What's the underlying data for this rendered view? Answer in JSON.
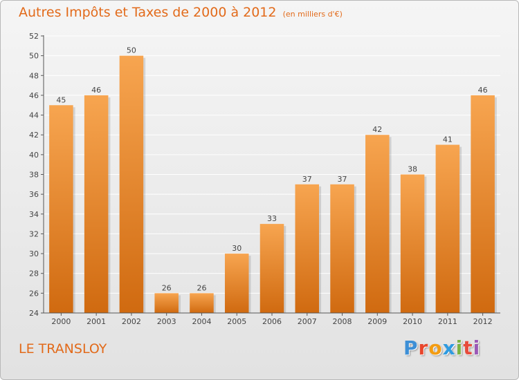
{
  "title": "Autres Impôts et Taxes de 2000 à 2012",
  "subtitle": "(en milliers d'€)",
  "commune": "LE TRANSLOY",
  "logo": {
    "letters": [
      "P",
      "r",
      "o",
      "x",
      "i",
      "t",
      "i"
    ],
    "colors": [
      "#3d8fd6",
      "#e8462c",
      "#f39c12",
      "#2f9be0",
      "#7cb342",
      "#e74c3c",
      "#9b59b6"
    ]
  },
  "colors": {
    "bar_top": "#f7a550",
    "bar_bottom": "#d06a10",
    "axis": "#555555",
    "grid": "#ffffff",
    "text": "#444444",
    "title": "#e26a1a"
  },
  "chart_data": {
    "type": "bar",
    "categories": [
      "2000",
      "2001",
      "2002",
      "2003",
      "2004",
      "2005",
      "2006",
      "2007",
      "2008",
      "2009",
      "2010",
      "2011",
      "2012"
    ],
    "values": [
      45,
      46,
      50,
      26,
      26,
      30,
      33,
      37,
      37,
      42,
      38,
      41,
      46
    ],
    "data_labels": [
      "45",
      "46",
      "50",
      "26",
      "26",
      "30",
      "33",
      "37",
      "37",
      "42",
      "38",
      "41",
      "46"
    ],
    "ylim": [
      24,
      52
    ],
    "yticks": [
      24,
      26,
      28,
      30,
      32,
      34,
      36,
      38,
      40,
      42,
      44,
      46,
      48,
      50,
      52
    ],
    "grid": true,
    "legend": "none",
    "title": "Autres Impôts et Taxes de 2000 à 2012",
    "xlabel": "",
    "ylabel": ""
  }
}
